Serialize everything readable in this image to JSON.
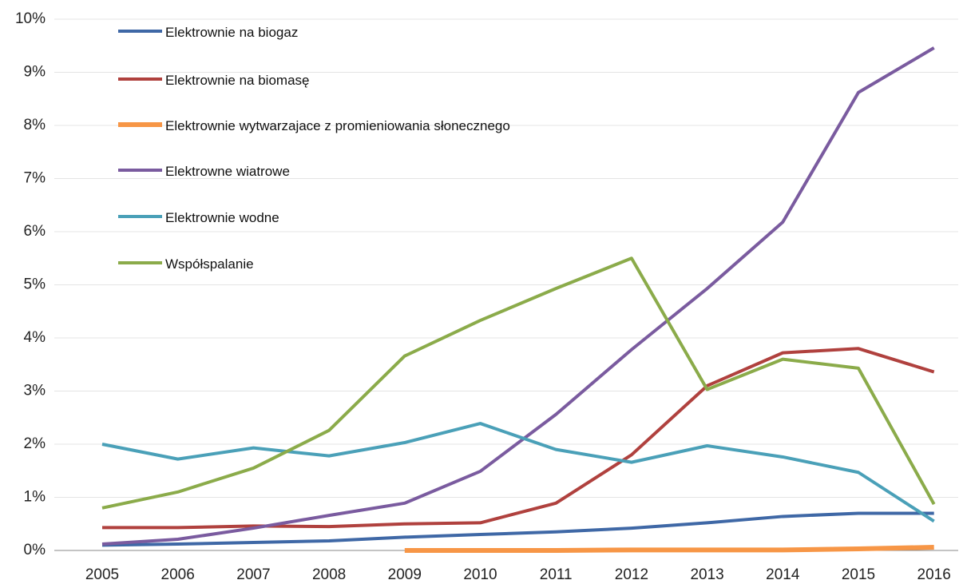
{
  "chart_data": {
    "type": "line",
    "categories": [
      "2005",
      "2006",
      "2007",
      "2008",
      "2009",
      "2010",
      "2011",
      "2012",
      "2013",
      "2014",
      "2015",
      "2016"
    ],
    "series": [
      {
        "name": "Elektrownie na biogaz",
        "color": "#3f68a6",
        "values": [
          0.1,
          0.12,
          0.15,
          0.18,
          0.25,
          0.3,
          0.35,
          0.42,
          0.52,
          0.64,
          0.7,
          0.7
        ]
      },
      {
        "name": "Elektrownie na biomasę",
        "color": "#b0413e",
        "values": [
          0.43,
          0.43,
          0.46,
          0.45,
          0.5,
          0.52,
          0.89,
          1.8,
          3.1,
          3.72,
          3.8,
          3.36
        ]
      },
      {
        "name": "Elektrownie wytwarzajace z promieniowania słonecznego",
        "color": "#f79646",
        "values": [
          null,
          null,
          null,
          null,
          0,
          0,
          0,
          0.01,
          0.01,
          0.01,
          0.03,
          0.06
        ]
      },
      {
        "name": "Elektrowne wiatrowe",
        "color": "#7a5b9f",
        "values": [
          0.12,
          0.21,
          0.42,
          0.66,
          0.89,
          1.49,
          2.56,
          3.78,
          4.93,
          6.18,
          8.62,
          9.46
        ]
      },
      {
        "name": "Elektrownie wodne",
        "color": "#4aa0b8",
        "values": [
          2.0,
          1.72,
          1.93,
          1.78,
          2.03,
          2.39,
          1.9,
          1.66,
          1.97,
          1.76,
          1.47,
          0.55
        ]
      },
      {
        "name": "Współspalanie",
        "color": "#8bab4a",
        "values": [
          0.8,
          1.1,
          1.55,
          2.26,
          3.66,
          4.33,
          4.93,
          5.5,
          3.03,
          3.6,
          3.43,
          0.87
        ]
      }
    ],
    "ylim": [
      0,
      10
    ],
    "yticks": [
      {
        "value": 0,
        "label": "0%"
      },
      {
        "value": 1,
        "label": "1%"
      },
      {
        "value": 2,
        "label": "2%"
      },
      {
        "value": 3,
        "label": "3%"
      },
      {
        "value": 4,
        "label": "4%"
      },
      {
        "value": 5,
        "label": "5%"
      },
      {
        "value": 6,
        "label": "6%"
      },
      {
        "value": 7,
        "label": "7%"
      },
      {
        "value": 8,
        "label": "8%"
      },
      {
        "value": 9,
        "label": "9%"
      },
      {
        "value": 10,
        "label": "10%"
      }
    ],
    "grid": true,
    "legend": "top-left"
  }
}
